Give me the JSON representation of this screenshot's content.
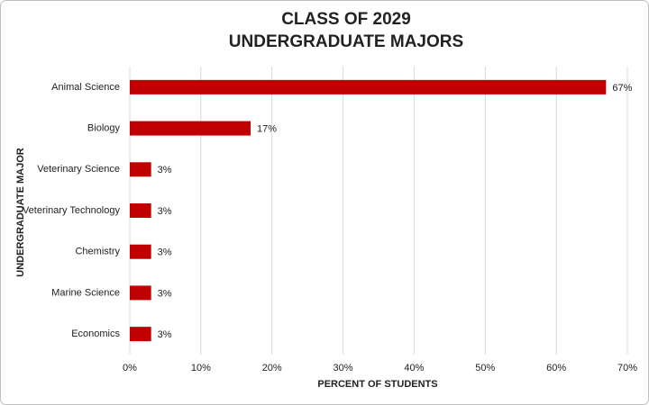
{
  "chart_data": {
    "type": "hbar",
    "title": [
      "CLASS OF 2029",
      "UNDERGRADUATE MAJORS"
    ],
    "x_label": "PERCENT OF STUDENTS",
    "y_label": "UNDERGRADUATE MAJOR",
    "categories": [
      "Animal Science",
      "Biology",
      "Veterinary Science",
      "Veterinary Technology",
      "Chemistry",
      "Marine Science",
      "Economics"
    ],
    "values": [
      67,
      17,
      3,
      3,
      3,
      3,
      3
    ],
    "value_labels": [
      "67%",
      "17%",
      "3%",
      "3%",
      "3%",
      "3%",
      "3%"
    ],
    "color": "#c00000",
    "xlim": [
      0,
      70
    ],
    "xticks": [
      {
        "value": 0,
        "label": "0%"
      },
      {
        "value": 10,
        "label": "10%"
      },
      {
        "value": 20,
        "label": "20%"
      },
      {
        "value": 30,
        "label": "30%"
      },
      {
        "value": 40,
        "label": "40%"
      },
      {
        "value": 50,
        "label": "50%"
      },
      {
        "value": 60,
        "label": "60%"
      },
      {
        "value": 70,
        "label": "70%"
      }
    ],
    "grid": true
  }
}
